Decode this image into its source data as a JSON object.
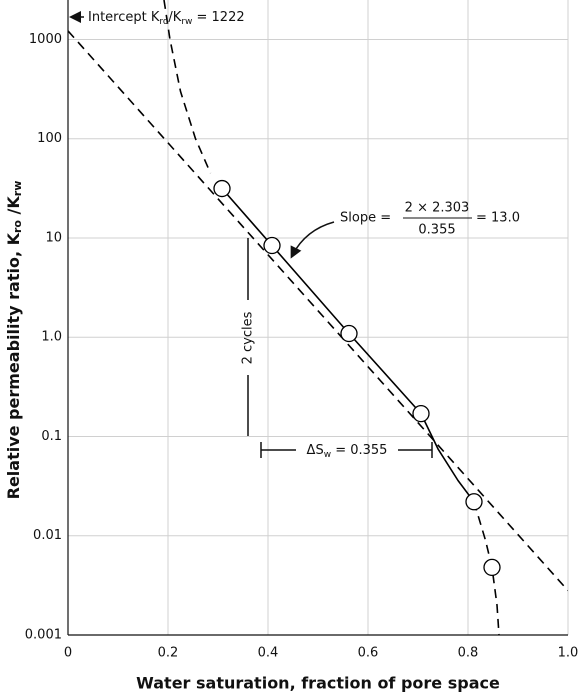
{
  "chart_data": {
    "type": "line",
    "y_label": [
      "Relative permeability ratio, K",
      "ro",
      " /K",
      "rw"
    ],
    "x_label": "Water saturation, fraction of pore space",
    "xlim": [
      0,
      1
    ],
    "xticks": [
      0,
      0.2,
      0.4,
      0.6,
      0.8,
      {
        "value": 1,
        "label": "1.0"
      }
    ],
    "ylim": [
      0.001,
      2500
    ],
    "log_y": true,
    "yticks": [
      0.001,
      0.01,
      0.1,
      {
        "value": 1,
        "label": "1.0"
      },
      10,
      100,
      1000
    ],
    "grid": true,
    "points": {
      "x": [
        0.308,
        0.408,
        0.562,
        0.706,
        0.812,
        0.848
      ],
      "values": [
        31.5,
        8.4,
        1.09,
        0.17,
        0.022,
        0.0048
      ],
      "color": "#000000"
    },
    "series": [
      {
        "x": [
          0,
          1
        ],
        "values": [
          1222,
          0.0028
        ],
        "color": "#000000",
        "dashed": true
      },
      {
        "x": [
          0.308,
          0.408,
          0.562,
          0.706,
          0.74,
          0.78,
          0.812
        ],
        "values": [
          31.5,
          8.4,
          1.09,
          0.17,
          0.075,
          0.036,
          0.022
        ],
        "color": "#000000",
        "dashed": false
      },
      {
        "x": [
          0.192,
          0.204,
          0.225,
          0.255,
          0.285
        ],
        "values": [
          2500,
          1000,
          300,
          100,
          45
        ],
        "color": "#000000",
        "dashed": true
      },
      {
        "x": [
          0.812,
          0.835,
          0.848,
          0.858,
          0.862
        ],
        "values": [
          0.022,
          0.009,
          0.0048,
          0.002,
          0.001
        ],
        "color": "#000000",
        "dashed": true
      }
    ],
    "annotations": {
      "intercept": [
        "Intercept K",
        "ro",
        "/K",
        "rw",
        " = 1222"
      ],
      "slope": {
        "lead": "Slope =",
        "numerator": "2 × 2.303",
        "denominator": "0.355",
        "result": "= 13.0"
      },
      "cycles": "2 cycles",
      "delta": [
        "ΔS",
        "w",
        " = 0.355"
      ]
    }
  }
}
